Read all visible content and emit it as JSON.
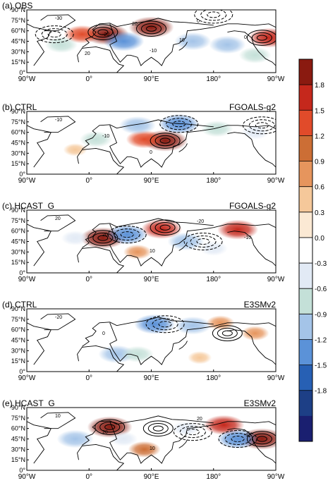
{
  "chart_data": [
    {
      "type": "heatmap",
      "panel_label": "(a) OBS",
      "model": "",
      "yticks": [
        "90°N",
        "75°N",
        "60°N",
        "45°N",
        "30°N",
        "15°N",
        "0°"
      ],
      "xticks": [
        "90°W",
        "0°",
        "90°E",
        "180°",
        "90°W"
      ],
      "contour_labels": [
        "-30",
        "-20",
        "-10",
        "0",
        "0",
        "20",
        "20",
        "10"
      ],
      "anomalies": [
        {
          "lon": 25,
          "lat": 55,
          "value": 1.8
        },
        {
          "lon": 90,
          "lat": 65,
          "value": 1.8
        },
        {
          "lon": -10,
          "lat": 55,
          "value": 1.2
        },
        {
          "lon": 260,
          "lat": 50,
          "value": 1.5
        },
        {
          "lon": 50,
          "lat": 45,
          "value": -1.5
        },
        {
          "lon": -40,
          "lat": 40,
          "value": -0.9
        },
        {
          "lon": 150,
          "lat": 45,
          "value": -1.2
        },
        {
          "lon": 200,
          "lat": 40,
          "value": -1.2
        },
        {
          "lon": 240,
          "lat": 25,
          "value": -0.9
        }
      ],
      "lows": [
        {
          "lon": 180,
          "lat": 83
        },
        {
          "lon": -50,
          "lat": 55
        }
      ],
      "highs": [
        {
          "lon": 20,
          "lat": 58
        },
        {
          "lon": 90,
          "lat": 63
        },
        {
          "lon": 250,
          "lat": 50
        }
      ]
    },
    {
      "type": "heatmap",
      "panel_label": "(b) CTRL",
      "model": "FGOALS-g2",
      "yticks": [
        "90°N",
        "75°N",
        "60°N",
        "45°N",
        "30°N",
        "15°N",
        "0°"
      ],
      "xticks": [
        "90°W",
        "0°",
        "90°E",
        "180°",
        "90°W"
      ],
      "contour_labels": [
        "-10",
        "-10",
        "0"
      ],
      "anomalies": [
        {
          "lon": 110,
          "lat": 48,
          "value": 1.8
        },
        {
          "lon": 80,
          "lat": 50,
          "value": 1.2
        },
        {
          "lon": 130,
          "lat": 72,
          "value": -1.5
        },
        {
          "lon": 70,
          "lat": 70,
          "value": -1.2
        },
        {
          "lon": 185,
          "lat": 65,
          "value": -0.9
        },
        {
          "lon": 10,
          "lat": 50,
          "value": -0.9
        },
        {
          "lon": 240,
          "lat": 60,
          "value": -0.6
        },
        {
          "lon": -20,
          "lat": 35,
          "value": 0.3
        }
      ],
      "lows": [
        {
          "lon": 130,
          "lat": 72
        },
        {
          "lon": 250,
          "lat": 70
        }
      ],
      "highs": [
        {
          "lon": 110,
          "lat": 48
        }
      ]
    },
    {
      "type": "heatmap",
      "panel_label": "(c) HCAST_G",
      "model": "FGOALS-g2",
      "yticks": [
        "90°N",
        "75°N",
        "60°N",
        "45°N",
        "30°N",
        "15°N",
        "0°"
      ],
      "xticks": [
        "90°W",
        "0°",
        "90°E",
        "180°",
        "90°W"
      ],
      "contour_labels": [
        "20",
        "20",
        "10",
        "-20",
        "-10"
      ],
      "anomalies": [
        {
          "lon": 20,
          "lat": 50,
          "value": 1.8
        },
        {
          "lon": 105,
          "lat": 63,
          "value": 1.5
        },
        {
          "lon": 215,
          "lat": 62,
          "value": 1.5
        },
        {
          "lon": 55,
          "lat": 55,
          "value": -1.5
        },
        {
          "lon": 140,
          "lat": 45,
          "value": -1.2
        },
        {
          "lon": -20,
          "lat": 50,
          "value": -0.6
        },
        {
          "lon": 180,
          "lat": 35,
          "value": -0.6
        },
        {
          "lon": 70,
          "lat": 30,
          "value": 0.6
        }
      ],
      "lows": [
        {
          "lon": 55,
          "lat": 55
        },
        {
          "lon": 165,
          "lat": 45
        }
      ],
      "highs": [
        {
          "lon": 20,
          "lat": 50
        },
        {
          "lon": 110,
          "lat": 65
        }
      ]
    },
    {
      "type": "heatmap",
      "panel_label": "(d) CTRL",
      "model": "E3SMv2",
      "yticks": [
        "90°N",
        "75°N",
        "60°N",
        "45°N",
        "30°N",
        "15°N",
        "0°"
      ],
      "xticks": [
        "90°W",
        "0°",
        "90°E",
        "180°",
        "90°W"
      ],
      "contour_labels": [
        "-20",
        "0"
      ],
      "anomalies": [
        {
          "lon": 95,
          "lat": 68,
          "value": -1.5
        },
        {
          "lon": 150,
          "lat": 66,
          "value": -1.2
        },
        {
          "lon": 40,
          "lat": 25,
          "value": -1.2
        },
        {
          "lon": 70,
          "lat": 25,
          "value": -0.9
        },
        {
          "lon": 190,
          "lat": 70,
          "value": 0.6
        },
        {
          "lon": 240,
          "lat": 55,
          "value": 0.6
        },
        {
          "lon": 160,
          "lat": 20,
          "value": 0.3
        },
        {
          "lon": -40,
          "lat": 40,
          "value": -0.3
        }
      ],
      "lows": [
        {
          "lon": 110,
          "lat": 68
        }
      ],
      "highs": [
        {
          "lon": 200,
          "lat": 55
        }
      ]
    },
    {
      "type": "heatmap",
      "panel_label": "(e) HCAST_G",
      "model": "E3SMv2",
      "yticks": [
        "90°N",
        "75°N",
        "60°N",
        "45°N",
        "30°N",
        "15°N",
        "0°"
      ],
      "xticks": [
        "90°W",
        "0°",
        "90°E",
        "180°",
        "90°W"
      ],
      "contour_labels": [
        "10",
        "20",
        "10",
        "20",
        "-10"
      ],
      "anomalies": [
        {
          "lon": 30,
          "lat": 62,
          "value": 1.8
        },
        {
          "lon": 250,
          "lat": 45,
          "value": 1.8
        },
        {
          "lon": 195,
          "lat": 65,
          "value": 1.5
        },
        {
          "lon": 80,
          "lat": 30,
          "value": 0.9
        },
        {
          "lon": -20,
          "lat": 45,
          "value": -1.2
        },
        {
          "lon": 215,
          "lat": 45,
          "value": -1.5
        },
        {
          "lon": 140,
          "lat": 60,
          "value": -0.6
        },
        {
          "lon": 50,
          "lat": 45,
          "value": -0.6
        }
      ],
      "lows": [
        {
          "lon": 215,
          "lat": 45
        },
        {
          "lon": 150,
          "lat": 55
        }
      ],
      "highs": [
        {
          "lon": 30,
          "lat": 62
        },
        {
          "lon": 100,
          "lat": 60
        },
        {
          "lon": 250,
          "lat": 45
        }
      ]
    }
  ],
  "colorbar": {
    "levels": [
      "1.8",
      "1.5",
      "1.2",
      "0.9",
      "0.6",
      "0.3",
      "0.0",
      "-0.3",
      "-0.6",
      "-0.9",
      "-1.2",
      "-1.5",
      "-1.8"
    ],
    "colors": [
      "#8a1a10",
      "#c5281c",
      "#e14b2a",
      "#cc6e35",
      "#e6955d",
      "#f5c89a",
      "#fbe9d4",
      "#ffffff",
      "#e2eaf5",
      "#c4e0d8",
      "#a4c4e8",
      "#5b92d8",
      "#2760b4",
      "#1d3f86",
      "#1a1f70"
    ]
  }
}
